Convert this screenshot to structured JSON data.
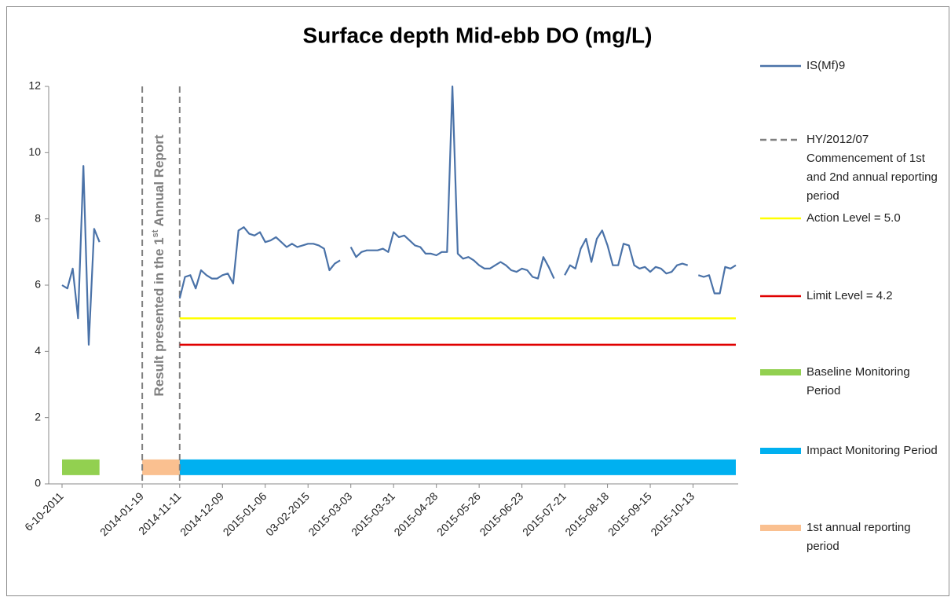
{
  "chart_data": {
    "type": "line",
    "title": "Surface depth Mid-ebb DO (mg/L)",
    "annotation": [
      "Result presented in the 1",
      "st",
      " Annual Report"
    ],
    "ylim": [
      0,
      12
    ],
    "yticks": [
      0,
      2,
      4,
      6,
      8,
      10,
      12
    ],
    "grid": false,
    "legend": "right",
    "categories": [
      "6-10-2011",
      null,
      null,
      null,
      null,
      null,
      null,
      null,
      null,
      null,
      null,
      null,
      null,
      null,
      null,
      "2014-01-19",
      null,
      null,
      null,
      null,
      null,
      null,
      "2014-11-11",
      null,
      null,
      null,
      null,
      null,
      null,
      null,
      "2014-12-09",
      null,
      null,
      null,
      null,
      null,
      null,
      null,
      "2015-01-06",
      null,
      null,
      null,
      null,
      null,
      null,
      null,
      "03-02-2015",
      null,
      null,
      null,
      null,
      null,
      null,
      null,
      "2015-03-03",
      null,
      null,
      null,
      null,
      null,
      null,
      null,
      "2015-03-31",
      null,
      null,
      null,
      null,
      null,
      null,
      null,
      "2015-04-28",
      null,
      null,
      null,
      null,
      null,
      null,
      null,
      "2015-05-26",
      null,
      null,
      null,
      null,
      null,
      null,
      null,
      "2015-06-23",
      null,
      null,
      null,
      null,
      null,
      null,
      null,
      "2015-07-21",
      null,
      null,
      null,
      null,
      null,
      null,
      null,
      "2015-08-18",
      null,
      null,
      null,
      null,
      null,
      null,
      null,
      "2015-09-15",
      null,
      null,
      null,
      null,
      null,
      null,
      null,
      "2015-10-13",
      null,
      null,
      null,
      null,
      null,
      null,
      null,
      null
    ],
    "series": [
      {
        "name": "IS(Mf)9",
        "color": "#4a72a8",
        "style": "line",
        "values": [
          6.0,
          5.9,
          6.5,
          5.0,
          9.6,
          4.2,
          7.7,
          7.3,
          null,
          null,
          null,
          null,
          null,
          null,
          null,
          null,
          null,
          null,
          null,
          null,
          null,
          null,
          5.6,
          6.25,
          6.3,
          5.9,
          6.45,
          6.3,
          6.2,
          6.2,
          6.3,
          6.35,
          6.05,
          7.65,
          7.75,
          7.55,
          7.5,
          7.6,
          7.3,
          7.35,
          7.45,
          7.3,
          7.15,
          7.25,
          7.15,
          7.2,
          7.25,
          7.25,
          7.2,
          7.1,
          6.45,
          6.65,
          6.75,
          null,
          7.15,
          6.85,
          7.0,
          7.05,
          7.05,
          7.05,
          7.1,
          7.0,
          7.6,
          7.45,
          7.5,
          7.35,
          7.2,
          7.15,
          6.95,
          6.95,
          6.9,
          7.0,
          7.0,
          12,
          6.95,
          6.8,
          6.85,
          6.75,
          6.6,
          6.5,
          6.5,
          6.6,
          6.7,
          6.6,
          6.45,
          6.4,
          6.5,
          6.45,
          6.25,
          6.2,
          6.85,
          6.55,
          6.2,
          null,
          6.3,
          6.6,
          6.5,
          7.1,
          7.4,
          6.7,
          7.4,
          7.65,
          7.2,
          6.6,
          6.6,
          7.25,
          7.2,
          6.6,
          6.5,
          6.55,
          6.4,
          6.55,
          6.5,
          6.35,
          6.4,
          6.6,
          6.65,
          6.6,
          null,
          6.3,
          6.25,
          6.3,
          5.75,
          5.75,
          6.55,
          6.5,
          6.6
        ]
      },
      {
        "name": "HY/2012/07 Commencement of 1st and 2nd annual reporting period",
        "color": "#808080",
        "style": "vline",
        "x": [
          "2014-01-19",
          "2014-11-11"
        ]
      },
      {
        "name": "Action Level = 5.0",
        "color": "#ffff00",
        "style": "line",
        "values": [
          null,
          null,
          null,
          null,
          null,
          null,
          null,
          null,
          null,
          null,
          null,
          null,
          null,
          null,
          null,
          null,
          null,
          null,
          null,
          null,
          null,
          null,
          5,
          5,
          5,
          5,
          5,
          5,
          5,
          5,
          5,
          5,
          5,
          5,
          5,
          5,
          5,
          5,
          5,
          5,
          5,
          5,
          5,
          5,
          5,
          5,
          5,
          5,
          5,
          5,
          5,
          5,
          5,
          5,
          5,
          5,
          5,
          5,
          5,
          5,
          5,
          5,
          5,
          5,
          5,
          5,
          5,
          5,
          5,
          5,
          5,
          5,
          5,
          5,
          5,
          5,
          5,
          5,
          5,
          5,
          5,
          5,
          5,
          5,
          5,
          5,
          5,
          5,
          5,
          5,
          5,
          5,
          5,
          5,
          5,
          5,
          5,
          5,
          5,
          5,
          5,
          5,
          5,
          5,
          5,
          5,
          5,
          5,
          5,
          5,
          5,
          5,
          5,
          5,
          5,
          5,
          5,
          5,
          5,
          5,
          5,
          5,
          5,
          5,
          5,
          5,
          5
        ]
      },
      {
        "name": "Limit Level = 4.2",
        "color": "#e00000",
        "style": "line",
        "values": [
          null,
          null,
          null,
          null,
          null,
          null,
          null,
          null,
          null,
          null,
          null,
          null,
          null,
          null,
          null,
          null,
          null,
          null,
          null,
          null,
          null,
          null,
          4.2,
          4.2,
          4.2,
          4.2,
          4.2,
          4.2,
          4.2,
          4.2,
          4.2,
          4.2,
          4.2,
          4.2,
          4.2,
          4.2,
          4.2,
          4.2,
          4.2,
          4.2,
          4.2,
          4.2,
          4.2,
          4.2,
          4.2,
          4.2,
          4.2,
          4.2,
          4.2,
          4.2,
          4.2,
          4.2,
          4.2,
          4.2,
          4.2,
          4.2,
          4.2,
          4.2,
          4.2,
          4.2,
          4.2,
          4.2,
          4.2,
          4.2,
          4.2,
          4.2,
          4.2,
          4.2,
          4.2,
          4.2,
          4.2,
          4.2,
          4.2,
          4.2,
          4.2,
          4.2,
          4.2,
          4.2,
          4.2,
          4.2,
          4.2,
          4.2,
          4.2,
          4.2,
          4.2,
          4.2,
          4.2,
          4.2,
          4.2,
          4.2,
          4.2,
          4.2,
          4.2,
          4.2,
          4.2,
          4.2,
          4.2,
          4.2,
          4.2,
          4.2,
          4.2,
          4.2,
          4.2,
          4.2,
          4.2,
          4.2,
          4.2,
          4.2,
          4.2,
          4.2,
          4.2,
          4.2,
          4.2,
          4.2,
          4.2,
          4.2,
          4.2,
          4.2,
          4.2,
          4.2,
          4.2,
          4.2,
          4.2,
          4.2,
          4.2,
          4.2,
          4.2
        ]
      },
      {
        "name": "Baseline Monitoring Period",
        "color": "#92d050",
        "style": "band",
        "values": [
          0.5,
          0.5,
          0.5,
          0.5,
          0.5,
          0.5,
          0.5,
          0.5,
          null,
          null,
          null,
          null,
          null,
          null,
          null,
          null,
          null,
          null,
          null,
          null,
          null,
          null,
          null,
          null,
          null,
          null,
          null,
          null,
          null,
          null,
          null,
          null,
          null,
          null,
          null,
          null,
          null,
          null,
          null,
          null,
          null,
          null,
          null,
          null,
          null,
          null,
          null,
          null,
          null,
          null,
          null,
          null,
          null,
          null,
          null,
          null,
          null,
          null,
          null,
          null,
          null,
          null,
          null,
          null,
          null,
          null,
          null,
          null,
          null,
          null,
          null,
          null,
          null,
          null,
          null,
          null,
          null,
          null,
          null,
          null,
          null,
          null,
          null,
          null,
          null,
          null,
          null,
          null,
          null,
          null,
          null,
          null,
          null,
          null,
          null,
          null,
          null,
          null,
          null,
          null,
          null,
          null,
          null,
          null,
          null,
          null,
          null,
          null,
          null,
          null,
          null,
          null,
          null,
          null,
          null,
          null,
          null,
          null,
          null,
          null,
          null,
          null,
          null,
          null,
          null,
          null,
          null
        ]
      },
      {
        "name": "Impact Monitoring Period",
        "color": "#00b0f0",
        "style": "band",
        "values": [
          null,
          null,
          null,
          null,
          null,
          null,
          null,
          null,
          null,
          null,
          null,
          null,
          null,
          null,
          null,
          null,
          null,
          null,
          null,
          null,
          null,
          null,
          0.5,
          0.5,
          0.5,
          0.5,
          0.5,
          0.5,
          0.5,
          0.5,
          0.5,
          0.5,
          0.5,
          0.5,
          0.5,
          0.5,
          0.5,
          0.5,
          0.5,
          0.5,
          0.5,
          0.5,
          0.5,
          0.5,
          0.5,
          0.5,
          0.5,
          0.5,
          0.5,
          0.5,
          0.5,
          0.5,
          0.5,
          0.5,
          0.5,
          0.5,
          0.5,
          0.5,
          0.5,
          0.5,
          0.5,
          0.5,
          0.5,
          0.5,
          0.5,
          0.5,
          0.5,
          0.5,
          0.5,
          0.5,
          0.5,
          0.5,
          0.5,
          0.5,
          0.5,
          0.5,
          0.5,
          0.5,
          0.5,
          0.5,
          0.5,
          0.5,
          0.5,
          0.5,
          0.5,
          0.5,
          0.5,
          0.5,
          0.5,
          0.5,
          0.5,
          0.5,
          0.5,
          0.5,
          0.5,
          0.5,
          0.5,
          0.5,
          0.5,
          0.5,
          0.5,
          0.5,
          0.5,
          0.5,
          0.5,
          0.5,
          0.5,
          0.5,
          0.5,
          0.5,
          0.5,
          0.5,
          0.5,
          0.5,
          0.5,
          0.5,
          0.5,
          0.5,
          0.5,
          0.5,
          0.5,
          0.5,
          0.5,
          0.5,
          0.5,
          0.5,
          0.5
        ]
      },
      {
        "name": "1st annual reporting period",
        "color": "#fac090",
        "style": "band",
        "values": [
          null,
          null,
          null,
          null,
          null,
          null,
          null,
          null,
          null,
          null,
          null,
          null,
          null,
          null,
          null,
          0.5,
          0.5,
          0.5,
          0.5,
          0.5,
          0.5,
          0.5,
          0.5,
          null,
          null,
          null,
          null,
          null,
          null,
          null,
          null,
          null,
          null,
          null,
          null,
          null,
          null,
          null,
          null,
          null,
          null,
          null,
          null,
          null,
          null,
          null,
          null,
          null,
          null,
          null,
          null,
          null,
          null,
          null,
          null,
          null,
          null,
          null,
          null,
          null,
          null,
          null,
          null,
          null,
          null,
          null,
          null,
          null,
          null,
          null,
          null,
          null,
          null,
          null,
          null,
          null,
          null,
          null,
          null,
          null,
          null,
          null,
          null,
          null,
          null,
          null,
          null,
          null,
          null,
          null,
          null,
          null,
          null,
          null,
          null,
          null,
          null,
          null,
          null,
          null,
          null,
          null,
          null,
          null,
          null,
          null,
          null,
          null,
          null,
          null,
          null,
          null,
          null,
          null,
          null,
          null,
          null,
          null,
          null,
          null,
          null,
          null,
          null,
          null,
          null,
          null,
          null
        ]
      }
    ]
  }
}
